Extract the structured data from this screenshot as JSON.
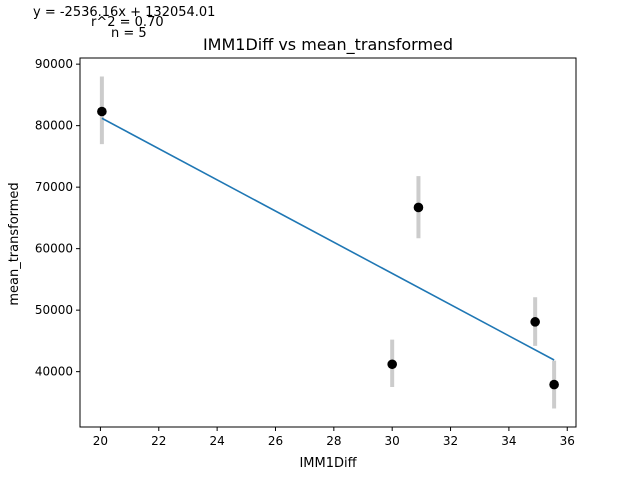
{
  "chart_data": {
    "type": "scatter",
    "title": "IMM1Diff vs mean_transformed",
    "xlabel": "IMM1Diff",
    "ylabel": "mean_transformed",
    "xlim": [
      19.3,
      36.3
    ],
    "ylim": [
      31000,
      91000
    ],
    "xticks": [
      20,
      22,
      24,
      26,
      28,
      30,
      32,
      34,
      36
    ],
    "yticks": [
      40000,
      50000,
      60000,
      70000,
      80000,
      90000
    ],
    "points": [
      {
        "x": 20.05,
        "y": 82300,
        "err_low": 77000,
        "err_high": 88000
      },
      {
        "x": 30.0,
        "y": 41200,
        "err_low": 37500,
        "err_high": 45200
      },
      {
        "x": 30.9,
        "y": 66700,
        "err_low": 61700,
        "err_high": 71800
      },
      {
        "x": 34.9,
        "y": 48100,
        "err_low": 44200,
        "err_high": 52100
      },
      {
        "x": 35.55,
        "y": 37900,
        "err_low": 34000,
        "err_high": 41800
      }
    ],
    "fit_line": {
      "x": [
        20.05,
        35.55
      ],
      "slope": -2536.16,
      "intercept": 132054.01
    },
    "grid": false,
    "colors": {
      "points": "#000000",
      "errorbars": "#cccccc",
      "fit": "#1f77b4"
    },
    "annotations": {
      "equation": "y = -2536.16x + 132054.01",
      "r2": "r^2 = 0.70",
      "n": "n = 5"
    }
  }
}
